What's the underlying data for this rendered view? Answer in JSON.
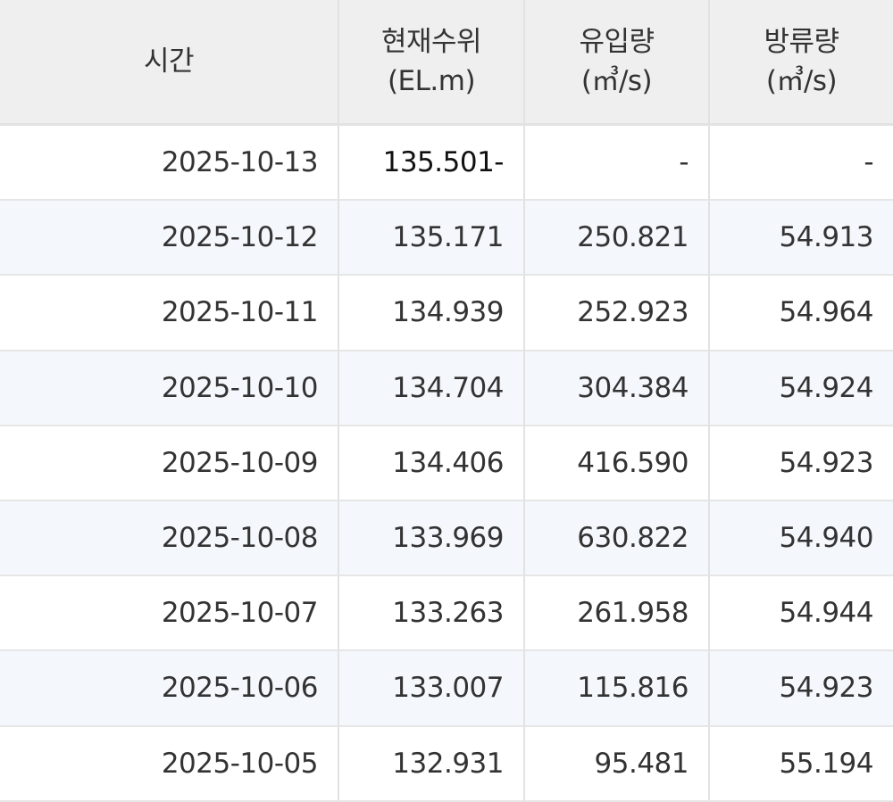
{
  "table": {
    "header": [
      [
        "시간"
      ],
      [
        "현재수위",
        "(EL.m)"
      ],
      [
        "유입량",
        "(㎥/s)"
      ],
      [
        "방류량",
        "(㎥/s)"
      ]
    ],
    "rows": [
      [
        "2025-10-13",
        "135.501-",
        "-",
        "-"
      ],
      [
        "2025-10-12",
        "135.171",
        "250.821",
        "54.913"
      ],
      [
        "2025-10-11",
        "134.939",
        "252.923",
        "54.964"
      ],
      [
        "2025-10-10",
        "134.704",
        "304.384",
        "54.924"
      ],
      [
        "2025-10-09",
        "134.406",
        "416.590",
        "54.923"
      ],
      [
        "2025-10-08",
        "133.969",
        "630.822",
        "54.940"
      ],
      [
        "2025-10-07",
        "133.263",
        "261.958",
        "54.944"
      ],
      [
        "2025-10-06",
        "133.007",
        "115.816",
        "54.923"
      ],
      [
        "2025-10-05",
        "132.931",
        "95.481",
        "55.194"
      ]
    ]
  }
}
